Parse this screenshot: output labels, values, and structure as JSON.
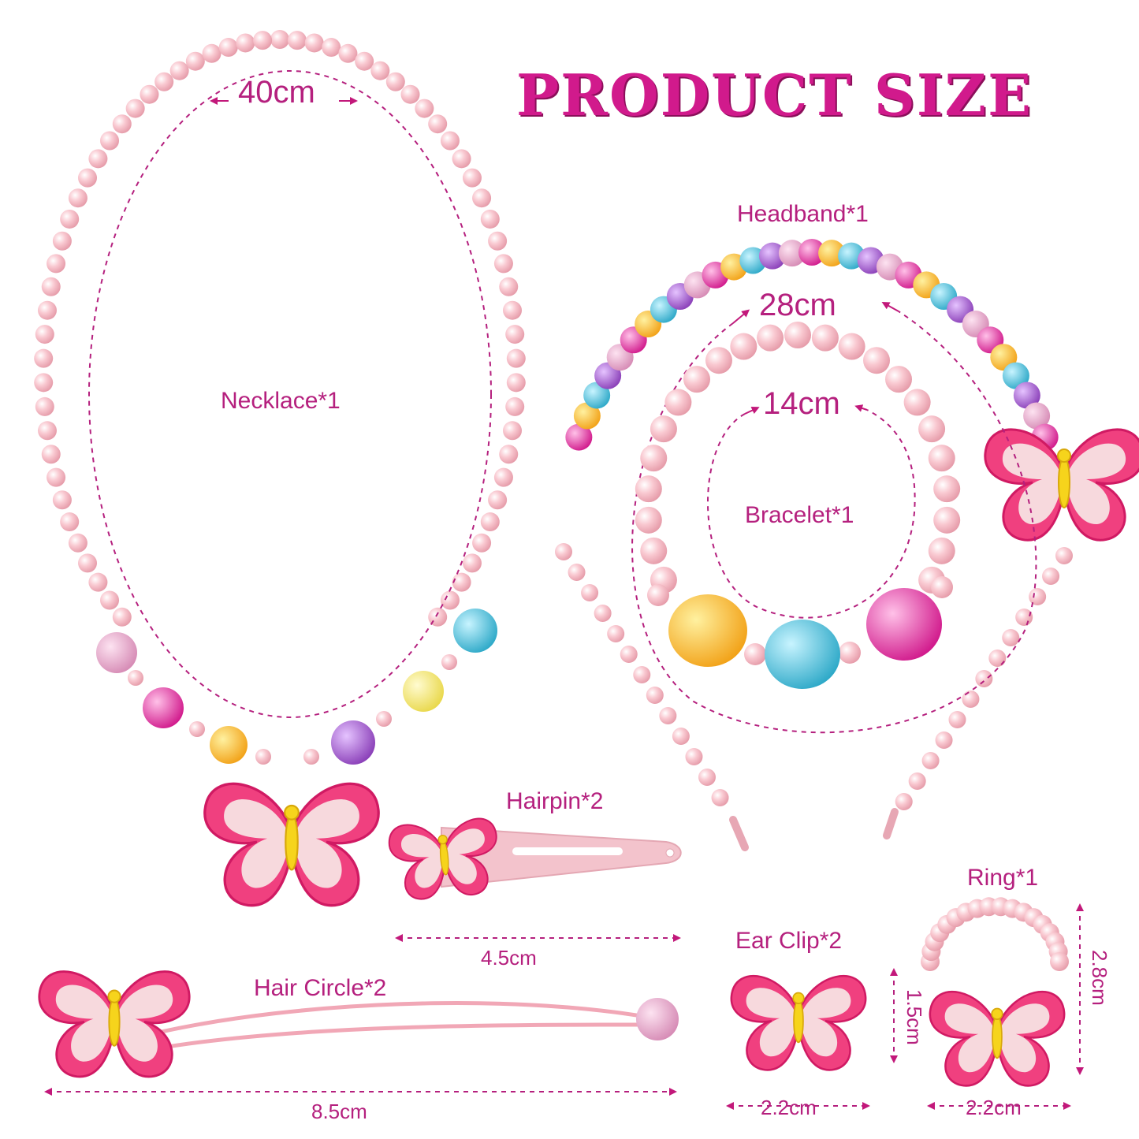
{
  "title": "PRODUCT SIZE",
  "colors": {
    "accent": "#b5207e",
    "title": "#d11a8c",
    "pearl": "#f7bcc6",
    "butterfly": "#f0407f",
    "butterfly_inner": "#f6d6da",
    "butterfly_body": "#f6d41c",
    "clip": "#f3c3cc"
  },
  "items": {
    "necklace": {
      "label": "Necklace*1",
      "size": "40cm"
    },
    "headband": {
      "label": "Headband*1",
      "size": "28cm"
    },
    "bracelet": {
      "label": "Bracelet*1",
      "size": "14cm"
    },
    "hairpin": {
      "label": "Hairpin*2",
      "size": "4.5cm"
    },
    "hair_circle": {
      "label": "Hair Circle*2",
      "size": "8.5cm"
    },
    "ear_clip": {
      "label": "Ear Clip*2",
      "width": "2.2cm",
      "height": "1.5cm"
    },
    "ring": {
      "label": "Ring*1",
      "width": "2.2cm",
      "height": "2.8cm"
    }
  }
}
